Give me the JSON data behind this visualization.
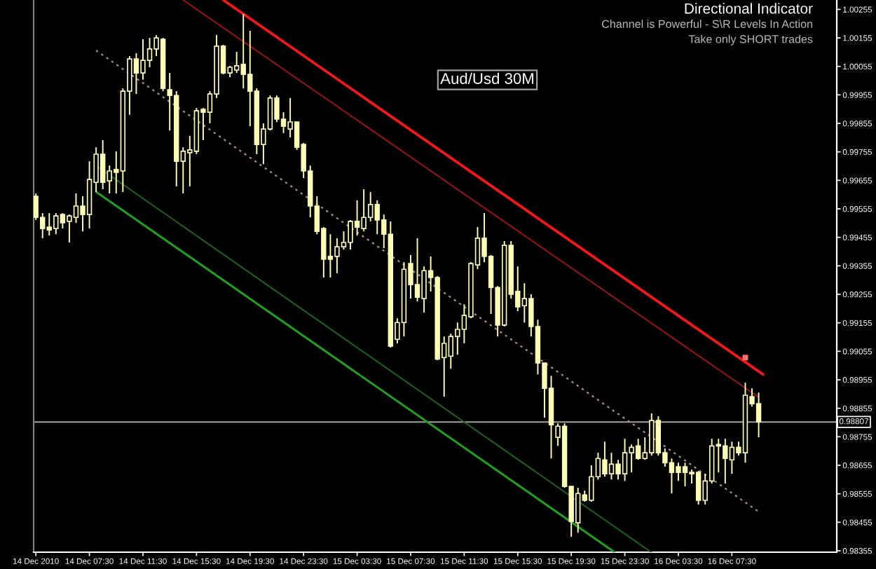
{
  "chart_data": {
    "type": "candlestick",
    "title": "Aud/Usd 30M",
    "annotations": [
      "Directional Indicator",
      "Channel is Powerful - S\\R Levels In Action",
      "Take only SHORT trades"
    ],
    "color": "#fdfdb4",
    "x": [
      "2010-12-14T03:30",
      "2010-12-14T04:00",
      "2010-12-14T04:30",
      "2010-12-14T05:00",
      "2010-12-14T05:30",
      "2010-12-14T06:00",
      "2010-12-14T06:30",
      "2010-12-14T07:00",
      "2010-12-14T07:30",
      "2010-12-14T08:00",
      "2010-12-14T08:30",
      "2010-12-14T09:00",
      "2010-12-14T09:30",
      "2010-12-14T10:00",
      "2010-12-14T10:30",
      "2010-12-14T11:00",
      "2010-12-14T11:30",
      "2010-12-14T12:00",
      "2010-12-14T12:30",
      "2010-12-14T13:00",
      "2010-12-14T13:30",
      "2010-12-14T14:00",
      "2010-12-14T14:30",
      "2010-12-14T15:00",
      "2010-12-14T15:30",
      "2010-12-14T16:00",
      "2010-12-14T16:30",
      "2010-12-14T17:00",
      "2010-12-14T17:30",
      "2010-12-14T18:00",
      "2010-12-14T18:30",
      "2010-12-14T19:00",
      "2010-12-14T19:30",
      "2010-12-14T20:00",
      "2010-12-14T20:30",
      "2010-12-14T21:00",
      "2010-12-14T21:30",
      "2010-12-14T22:00",
      "2010-12-14T22:30",
      "2010-12-14T23:00",
      "2010-12-14T23:30",
      "2010-12-15T00:00",
      "2010-12-15T00:30",
      "2010-12-15T01:00",
      "2010-12-15T01:30",
      "2010-12-15T02:00",
      "2010-12-15T02:30",
      "2010-12-15T03:00",
      "2010-12-15T03:30",
      "2010-12-15T04:00",
      "2010-12-15T04:30",
      "2010-12-15T05:00",
      "2010-12-15T05:30",
      "2010-12-15T06:00",
      "2010-12-15T06:30",
      "2010-12-15T07:00",
      "2010-12-15T07:30",
      "2010-12-15T08:00",
      "2010-12-15T08:30",
      "2010-12-15T09:00",
      "2010-12-15T09:30",
      "2010-12-15T10:00",
      "2010-12-15T10:30",
      "2010-12-15T11:00",
      "2010-12-15T11:30",
      "2010-12-15T12:00",
      "2010-12-15T12:30",
      "2010-12-15T13:00",
      "2010-12-15T13:30",
      "2010-12-15T14:00",
      "2010-12-15T14:30",
      "2010-12-15T15:00",
      "2010-12-15T15:30",
      "2010-12-15T16:00",
      "2010-12-15T16:30",
      "2010-12-15T17:00",
      "2010-12-15T17:30",
      "2010-12-15T18:00",
      "2010-12-15T18:30",
      "2010-12-15T19:00",
      "2010-12-15T19:30",
      "2010-12-15T20:00",
      "2010-12-15T20:30",
      "2010-12-15T21:00",
      "2010-12-15T21:30",
      "2010-12-15T22:00",
      "2010-12-15T22:30",
      "2010-12-15T23:00",
      "2010-12-15T23:30",
      "2010-12-16T00:00",
      "2010-12-16T00:30",
      "2010-12-16T01:00",
      "2010-12-16T01:30",
      "2010-12-16T02:00",
      "2010-12-16T02:30",
      "2010-12-16T03:00",
      "2010-12-16T03:30",
      "2010-12-16T04:00",
      "2010-12-16T04:30",
      "2010-12-16T05:00",
      "2010-12-16T05:30",
      "2010-12-16T06:00",
      "2010-12-16T06:30",
      "2010-12-16T07:00",
      "2010-12-16T07:30",
      "2010-12-16T08:00",
      "2010-12-16T08:30",
      "2010-12-16T09:00",
      "2010-12-16T09:30"
    ],
    "ohlc": [
      [
        0.99599,
        0.99609,
        0.99516,
        0.99525
      ],
      [
        0.99525,
        0.9954,
        0.99452,
        0.99486
      ],
      [
        0.99491,
        0.9954,
        0.99461,
        0.99481
      ],
      [
        0.99486,
        0.9954,
        0.99466,
        0.9953
      ],
      [
        0.99535,
        0.9954,
        0.99486,
        0.99506
      ],
      [
        0.99511,
        0.99535,
        0.99437,
        0.9953
      ],
      [
        0.99525,
        0.99609,
        0.99506,
        0.99565
      ],
      [
        0.99565,
        0.99599,
        0.99476,
        0.99535
      ],
      [
        0.99535,
        0.99722,
        0.99486,
        0.99658
      ],
      [
        0.99648,
        0.99771,
        0.99614,
        0.99747
      ],
      [
        0.99747,
        0.99796,
        0.99624,
        0.99648
      ],
      [
        0.99653,
        0.99707,
        0.99609,
        0.99688
      ],
      [
        0.99693,
        0.99757,
        0.99609,
        0.99683
      ],
      [
        0.99688,
        0.99978,
        0.99614,
        0.99968
      ],
      [
        0.99968,
        1.00091,
        0.99885,
        1.00081
      ],
      [
        1.00081,
        1.00101,
        0.99958,
        1.00032
      ],
      [
        1.00032,
        1.0015,
        1.00008,
        1.00076
      ],
      [
        1.00076,
        1.00155,
        1.00052,
        1.00116
      ],
      [
        1.00116,
        1.00165,
        1.00091,
        1.00155
      ],
      [
        1.0015,
        1.00155,
        0.99968,
        0.99978
      ],
      [
        0.99973,
        1.00032,
        0.9983,
        0.99953
      ],
      [
        0.99953,
        0.99968,
        0.99634,
        0.99722
      ],
      [
        0.99722,
        0.99771,
        0.99609,
        0.99757
      ],
      [
        0.99752,
        0.99811,
        0.99634,
        0.99762
      ],
      [
        0.99757,
        0.99909,
        0.99747,
        0.99899
      ],
      [
        0.99904,
        0.99909,
        0.99796,
        0.99894
      ],
      [
        0.99894,
        0.99968,
        0.99855,
        0.99958
      ],
      [
        0.99958,
        1.00165,
        0.99944,
        1.00126
      ],
      [
        1.00126,
        1.00131,
        1.00027,
        1.00032
      ],
      [
        1.00032,
        1.00057,
        1.00017,
        1.00052
      ],
      [
        1.00042,
        1.00106,
        1.00032,
        1.00057
      ],
      [
        1.00062,
        1.00239,
        0.99978,
        1.00027
      ],
      [
        1.00027,
        1.0018,
        0.99845,
        0.99968
      ],
      [
        0.99968,
        0.99978,
        0.99747,
        0.99781
      ],
      [
        0.99781,
        0.99855,
        0.99712,
        0.99835
      ],
      [
        0.99835,
        0.99953,
        0.9983,
        0.99944
      ],
      [
        0.99944,
        0.99953,
        0.9986,
        0.9987
      ],
      [
        0.9987,
        0.99894,
        0.99821,
        0.99845
      ],
      [
        0.99835,
        0.99944,
        0.99806,
        0.9986
      ],
      [
        0.9986,
        0.9986,
        0.99762,
        0.99771
      ],
      [
        0.99781,
        0.99786,
        0.99663,
        0.99688
      ],
      [
        0.99688,
        0.99707,
        0.99525,
        0.99565
      ],
      [
        0.99565,
        0.99599,
        0.99466,
        0.99476
      ],
      [
        0.99486,
        0.99491,
        0.99314,
        0.99378
      ],
      [
        0.99388,
        0.99466,
        0.99314,
        0.99378
      ],
      [
        0.99388,
        0.99452,
        0.99329,
        0.99422
      ],
      [
        0.99422,
        0.99476,
        0.99412,
        0.99437
      ],
      [
        0.99437,
        0.99516,
        0.99412,
        0.99511
      ],
      [
        0.99511,
        0.99585,
        0.99461,
        0.99491
      ],
      [
        0.99486,
        0.99624,
        0.99476,
        0.99525
      ],
      [
        0.99525,
        0.99614,
        0.99511,
        0.9957
      ],
      [
        0.9957,
        0.99585,
        0.99466,
        0.99516
      ],
      [
        0.99516,
        0.99535,
        0.99417,
        0.99466
      ],
      [
        0.99466,
        0.99511,
        0.99068,
        0.99073
      ],
      [
        0.99097,
        0.99171,
        0.99083,
        0.99156
      ],
      [
        0.99156,
        0.99368,
        0.99107,
        0.99343
      ],
      [
        0.99363,
        0.99393,
        0.9924,
        0.99289
      ],
      [
        0.99289,
        0.99452,
        0.9923,
        0.99245
      ],
      [
        0.9924,
        0.99353,
        0.99191,
        0.99338
      ],
      [
        0.99338,
        0.99388,
        0.99265,
        0.99314
      ],
      [
        0.99314,
        0.99319,
        0.99024,
        0.99028
      ],
      [
        0.99033,
        0.99107,
        0.98896,
        0.99083
      ],
      [
        0.99038,
        0.99117,
        0.98994,
        0.99107
      ],
      [
        0.99107,
        0.99156,
        0.99043,
        0.99132
      ],
      [
        0.99132,
        0.9922,
        0.99083,
        0.99181
      ],
      [
        0.99176,
        0.99368,
        0.99171,
        0.99363
      ],
      [
        0.99358,
        0.99491,
        0.99343,
        0.99452
      ],
      [
        0.99452,
        0.9954,
        0.99368,
        0.99388
      ],
      [
        0.99388,
        0.99393,
        0.99186,
        0.99279
      ],
      [
        0.99279,
        0.99284,
        0.99107,
        0.99147
      ],
      [
        0.99147,
        0.99442,
        0.99142,
        0.99427
      ],
      [
        0.99427,
        0.99442,
        0.9924,
        0.99255
      ],
      [
        0.99265,
        0.99353,
        0.99196,
        0.99211
      ],
      [
        0.99215,
        0.99294,
        0.99156,
        0.9924
      ],
      [
        0.9924,
        0.99255,
        0.99107,
        0.99142
      ],
      [
        0.99142,
        0.99166,
        0.98974,
        0.99014
      ],
      [
        0.99014,
        0.99014,
        0.98822,
        0.98925
      ],
      [
        0.98925,
        0.98969,
        0.98679,
        0.98797
      ],
      [
        0.98753,
        0.98802,
        0.98723,
        0.98792
      ],
      [
        0.98792,
        0.98802,
        0.98576,
        0.98581
      ],
      [
        0.98581,
        0.98581,
        0.98404,
        0.98458
      ],
      [
        0.98453,
        0.98576,
        0.98418,
        0.98556
      ],
      [
        0.98551,
        0.98566,
        0.98527,
        0.98532
      ],
      [
        0.98532,
        0.98655,
        0.98527,
        0.98615
      ],
      [
        0.98615,
        0.98699,
        0.98605,
        0.98679
      ],
      [
        0.98674,
        0.98738,
        0.98615,
        0.98625
      ],
      [
        0.98625,
        0.98699,
        0.98605,
        0.98659
      ],
      [
        0.98659,
        0.98674,
        0.98605,
        0.98625
      ],
      [
        0.98625,
        0.98748,
        0.986,
        0.98699
      ],
      [
        0.98699,
        0.98728,
        0.9863,
        0.98718
      ],
      [
        0.98723,
        0.98748,
        0.98674,
        0.98679
      ],
      [
        0.98679,
        0.98753,
        0.98674,
        0.98699
      ],
      [
        0.98699,
        0.98837,
        0.98689,
        0.98812
      ],
      [
        0.98812,
        0.98827,
        0.98689,
        0.98699
      ],
      [
        0.98699,
        0.98714,
        0.9865,
        0.98664
      ],
      [
        0.98664,
        0.98679,
        0.98556,
        0.9863
      ],
      [
        0.9865,
        0.98664,
        0.986,
        0.9863
      ],
      [
        0.9865,
        0.98664,
        0.98581,
        0.9863
      ],
      [
        0.9863,
        0.9864,
        0.98591,
        0.98625
      ],
      [
        0.9863,
        0.98635,
        0.98517,
        0.98532
      ],
      [
        0.98532,
        0.98625,
        0.98517,
        0.986
      ],
      [
        0.986,
        0.98748,
        0.98591,
        0.98723
      ],
      [
        0.98728,
        0.98748,
        0.9863,
        0.98723
      ],
      [
        0.98723,
        0.98748,
        0.98591,
        0.98679
      ],
      [
        0.98674,
        0.98738,
        0.98625,
        0.98718
      ],
      [
        0.98718,
        0.98738,
        0.98689,
        0.98699
      ],
      [
        0.98699,
        0.98945,
        0.98664,
        0.98901
      ],
      [
        0.98896,
        0.98925,
        0.98861,
        0.98871
      ],
      [
        0.98871,
        0.9891,
        0.98753,
        0.98807
      ]
    ],
    "series": [
      {
        "type": "line",
        "color": "#f01818",
        "x": [
          "2010-12-14T17:30",
          "2010-12-16T09:50"
        ],
        "values": [
          1.00288,
          0.98974
        ]
      },
      {
        "type": "line",
        "color": "#a01414",
        "x": [
          "2010-12-14T14:30",
          "2010-12-16T09:30"
        ],
        "values": [
          1.00288,
          0.98894
        ]
      },
      {
        "type": "line",
        "color": "#b08c8c",
        "line_style": "dotted",
        "x": [
          "2010-12-14T08:00",
          "2010-12-16T09:30"
        ],
        "values": [
          1.00111,
          0.98492
        ]
      },
      {
        "type": "line",
        "color": "#1c641c",
        "x": [
          "2010-12-14T08:00",
          "2010-12-16T01:28"
        ],
        "values": [
          0.99706,
          0.9835
        ]
      },
      {
        "type": "line",
        "color": "#20a020",
        "x": [
          "2010-12-14T08:00",
          "2010-12-15T22:44"
        ],
        "values": [
          0.99615,
          0.9835
        ]
      },
      {
        "type": "scatter",
        "color": "#ff7070",
        "marker": "square",
        "x": [
          "2010-12-16T08:30"
        ],
        "values": [
          0.99033
        ]
      }
    ],
    "ref_lines": [
      {
        "axis": "y",
        "value": 0.98807,
        "label": "0.98807",
        "color": "#a0a0a0"
      }
    ],
    "xlim": [
      "2010-12-14T03:20",
      "2010-12-16T15:20"
    ],
    "xticks": [
      {
        "value": "2010-12-14T03:30",
        "label": "14 Dec 2010"
      },
      {
        "value": "2010-12-14T07:30",
        "label": "14 Dec 07:30"
      },
      {
        "value": "2010-12-14T11:30",
        "label": "14 Dec 11:30"
      },
      {
        "value": "2010-12-14T15:30",
        "label": "14 Dec 15:30"
      },
      {
        "value": "2010-12-14T19:30",
        "label": "14 Dec 19:30"
      },
      {
        "value": "2010-12-14T23:30",
        "label": "14 Dec 23:30"
      },
      {
        "value": "2010-12-15T03:30",
        "label": "15 Dec 03:30"
      },
      {
        "value": "2010-12-15T07:30",
        "label": "15 Dec 07:30"
      },
      {
        "value": "2010-12-15T11:30",
        "label": "15 Dec 11:30"
      },
      {
        "value": "2010-12-15T15:30",
        "label": "15 Dec 15:30"
      },
      {
        "value": "2010-12-15T19:30",
        "label": "15 Dec 19:30"
      },
      {
        "value": "2010-12-15T23:30",
        "label": "15 Dec 23:30"
      },
      {
        "value": "2010-12-16T03:30",
        "label": "16 Dec 03:30"
      },
      {
        "value": "2010-12-16T07:30",
        "label": "16 Dec 07:30"
      }
    ],
    "ylim": [
      0.9835,
      1.00288
    ],
    "yticks": [
      1.00255,
      1.00155,
      1.00055,
      0.99955,
      0.99855,
      0.99755,
      0.99655,
      0.99555,
      0.99455,
      0.99355,
      0.99255,
      0.99155,
      0.99055,
      0.98955,
      0.98855,
      0.98755,
      0.98655,
      0.98555,
      0.98455,
      0.98355
    ]
  }
}
